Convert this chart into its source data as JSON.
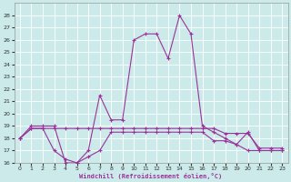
{
  "xlabel": "Windchill (Refroidissement éolien,°C)",
  "background_color": "#cceaea",
  "grid_color": "#aacccc",
  "line_color": "#993399",
  "xlim": [
    -0.5,
    23.5
  ],
  "ylim": [
    16,
    29
  ],
  "xticks": [
    0,
    1,
    2,
    3,
    4,
    5,
    6,
    7,
    8,
    9,
    10,
    11,
    12,
    13,
    14,
    15,
    16,
    17,
    18,
    19,
    20,
    21,
    22,
    23
  ],
  "yticks": [
    16,
    17,
    18,
    19,
    20,
    21,
    22,
    23,
    24,
    25,
    26,
    27,
    28
  ],
  "line1_x": [
    0,
    1,
    2,
    3,
    4,
    5,
    6,
    7,
    8,
    9,
    10,
    11,
    12,
    13,
    14,
    15,
    16,
    17,
    18,
    19,
    20,
    21,
    22,
    23
  ],
  "line1_y": [
    18,
    19,
    19,
    19,
    16,
    16,
    17,
    21.5,
    19.5,
    19.5,
    26,
    26.5,
    26.5,
    24.5,
    28,
    26.5,
    19,
    18.5,
    18,
    17.5,
    18.5,
    17,
    17,
    17
  ],
  "line2_x": [
    0,
    1,
    2,
    3,
    4,
    5,
    6,
    7,
    8,
    9,
    10,
    11,
    12,
    13,
    14,
    15,
    16,
    17,
    18,
    19,
    20,
    21,
    22,
    23
  ],
  "line2_y": [
    18,
    18.8,
    18.8,
    18.8,
    18.8,
    18.8,
    18.8,
    18.8,
    18.8,
    18.8,
    18.8,
    18.8,
    18.8,
    18.8,
    18.8,
    18.8,
    18.8,
    18.8,
    18.4,
    18.4,
    18.4,
    17.2,
    17.2,
    17.2
  ],
  "line3_x": [
    0,
    1,
    2,
    3,
    4,
    5,
    6,
    7,
    8,
    9,
    10,
    11,
    12,
    13,
    14,
    15,
    16,
    17,
    18,
    19,
    20,
    21,
    22,
    23
  ],
  "line3_y": [
    18,
    18.8,
    18.8,
    17,
    16.3,
    16,
    16.5,
    17,
    18.5,
    18.5,
    18.5,
    18.5,
    18.5,
    18.5,
    18.5,
    18.5,
    18.5,
    17.8,
    17.8,
    17.5,
    17,
    17,
    17,
    17
  ]
}
